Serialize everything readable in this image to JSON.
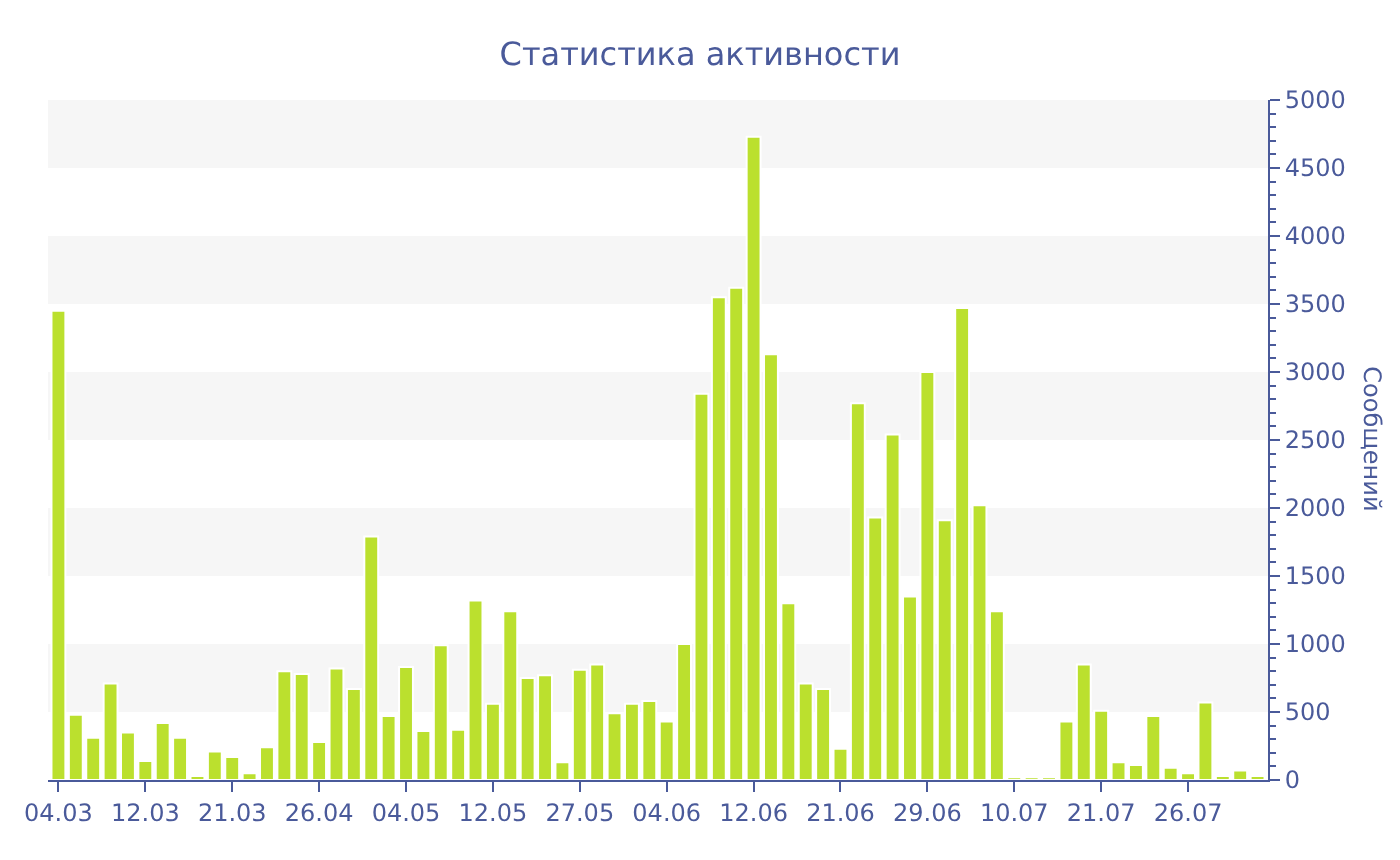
{
  "chart_data": {
    "type": "bar",
    "title": "Статистика активности",
    "ylabel": "Сообщений",
    "categories": [
      "04.03",
      null,
      null,
      null,
      null,
      "12.03",
      null,
      null,
      null,
      null,
      "21.03",
      null,
      null,
      null,
      null,
      "26.04",
      null,
      null,
      null,
      null,
      "04.05",
      null,
      null,
      null,
      null,
      "12.05",
      null,
      null,
      null,
      null,
      "27.05",
      null,
      null,
      null,
      null,
      "04.06",
      null,
      null,
      null,
      null,
      "12.06",
      null,
      null,
      null,
      null,
      "21.06",
      null,
      null,
      null,
      null,
      "29.06",
      null,
      null,
      null,
      null,
      "10.07",
      null,
      null,
      null,
      null,
      "21.07",
      null,
      null,
      null,
      null,
      "26.07",
      null,
      null,
      null,
      null
    ],
    "values": [
      3450,
      480,
      310,
      710,
      350,
      140,
      420,
      310,
      30,
      210,
      170,
      50,
      240,
      800,
      780,
      280,
      820,
      670,
      1790,
      470,
      830,
      360,
      990,
      370,
      1320,
      560,
      1240,
      750,
      770,
      130,
      810,
      850,
      490,
      560,
      580,
      430,
      1000,
      2840,
      3550,
      3620,
      4730,
      3130,
      1300,
      710,
      670,
      230,
      2770,
      1930,
      2540,
      1350,
      3000,
      1910,
      3470,
      2020,
      1240,
      20,
      20,
      20,
      430,
      850,
      510,
      130,
      110,
      470,
      90,
      50,
      570,
      30,
      70,
      30
    ],
    "color": "#bbe02e",
    "ylim": [
      0,
      5000
    ],
    "yticks": [
      0,
      500,
      1000,
      1500,
      2000,
      2500,
      3000,
      3500,
      4000,
      4500,
      5000
    ],
    "bands": [
      {
        "axis": "y",
        "from": 500,
        "to": 1000,
        "color": "#f6f6f6"
      },
      {
        "axis": "y",
        "from": 1500,
        "to": 2000,
        "color": "#f6f6f6"
      },
      {
        "axis": "y",
        "from": 2500,
        "to": 3000,
        "color": "#f6f6f6"
      },
      {
        "axis": "y",
        "from": 3500,
        "to": 4000,
        "color": "#f6f6f6"
      },
      {
        "axis": "y",
        "from": 4500,
        "to": 5000,
        "color": "#f6f6f6"
      }
    ]
  }
}
